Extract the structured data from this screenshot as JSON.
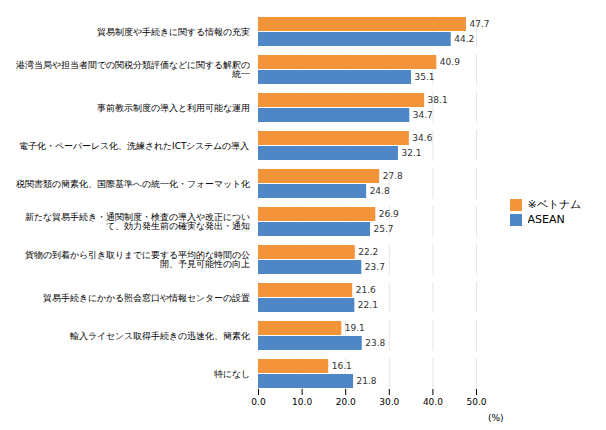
{
  "chart_data": {
    "type": "bar",
    "orientation": "horizontal",
    "categories": [
      "特になし",
      "輸入ライセンス取得手続きの迅速化、簡素化",
      "貿易手続きにかかる照会窓口や情報センターの設置",
      "貨物の到着から引き取りまでに要する平均的な時間の公\n開、予見可能性の向上",
      "新たな貿易手続き・通関制度・検査の導入や改正につい\nて、効力発生前の確実な発出・通知",
      "税関書類の簡素化、国際基準への統一化・フォーマット化",
      "電子化・ペーパーレス化、洗練されたICTシステムの導入",
      "事前教示制度の導入と利用可能な運用",
      "港湾当局や担当者間での関税分類評価などに関する解釈の\n統一",
      "貿易制度や手続きに関する情報の充実"
    ],
    "series": [
      {
        "name": "※ベトナム",
        "color": "#F4943A",
        "values": [
          16.1,
          19.1,
          21.6,
          22.2,
          26.9,
          27.8,
          34.6,
          38.1,
          40.9,
          47.7
        ]
      },
      {
        "name": "ASEAN",
        "color": "#4F86C6",
        "values": [
          21.8,
          23.8,
          22.1,
          23.7,
          25.7,
          24.8,
          32.1,
          34.7,
          35.1,
          44.2
        ]
      }
    ],
    "xlabel": "(%)",
    "xlim": [
      0,
      50.0
    ],
    "xticks": [
      {
        "value": 0.0,
        "label": "0.0"
      },
      {
        "value": 10.0,
        "label": "10.0"
      },
      {
        "value": 20.0,
        "label": "20.0"
      },
      {
        "value": 30.0,
        "label": "30.0"
      },
      {
        "value": 40.0,
        "label": "40.0"
      },
      {
        "value": 50.0,
        "label": "50.0"
      }
    ],
    "grid": true,
    "legend": "right",
    "data_labels": true
  }
}
